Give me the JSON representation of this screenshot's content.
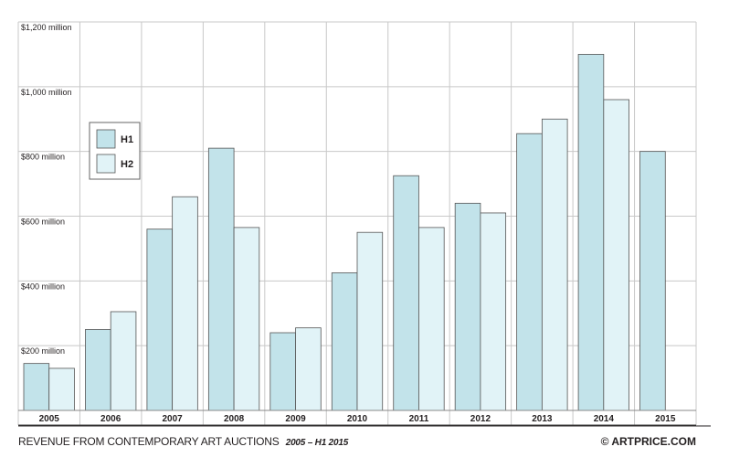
{
  "chart_data": {
    "type": "bar",
    "title": "REVENUE FROM CONTEMPORARY ART AUCTIONS",
    "subtitle": "2005 – H1 2015",
    "credit": "© ARTPRICE.COM",
    "categories": [
      "2005",
      "2006",
      "2007",
      "2008",
      "2009",
      "2010",
      "2011",
      "2012",
      "2013",
      "2014",
      "2015"
    ],
    "series": [
      {
        "name": "H1",
        "color": "#c2e3ea",
        "values": [
          145,
          250,
          560,
          810,
          240,
          425,
          725,
          640,
          855,
          1100,
          800
        ]
      },
      {
        "name": "H2",
        "color": "#e1f3f7",
        "values": [
          130,
          305,
          660,
          565,
          255,
          550,
          565,
          610,
          900,
          960,
          null
        ]
      }
    ],
    "y_ticks": [
      {
        "value": 200,
        "label": "$200 million"
      },
      {
        "value": 400,
        "label": "$400 million"
      },
      {
        "value": 600,
        "label": "$600 million"
      },
      {
        "value": 800,
        "label": "$800 million"
      },
      {
        "value": 1000,
        "label": "$1,000 million"
      },
      {
        "value": 1200,
        "label": "$1,200 million"
      }
    ],
    "ylim": [
      0,
      1200
    ],
    "xlabel": "",
    "ylabel": "",
    "legend_position": "top-left",
    "grid": true
  }
}
